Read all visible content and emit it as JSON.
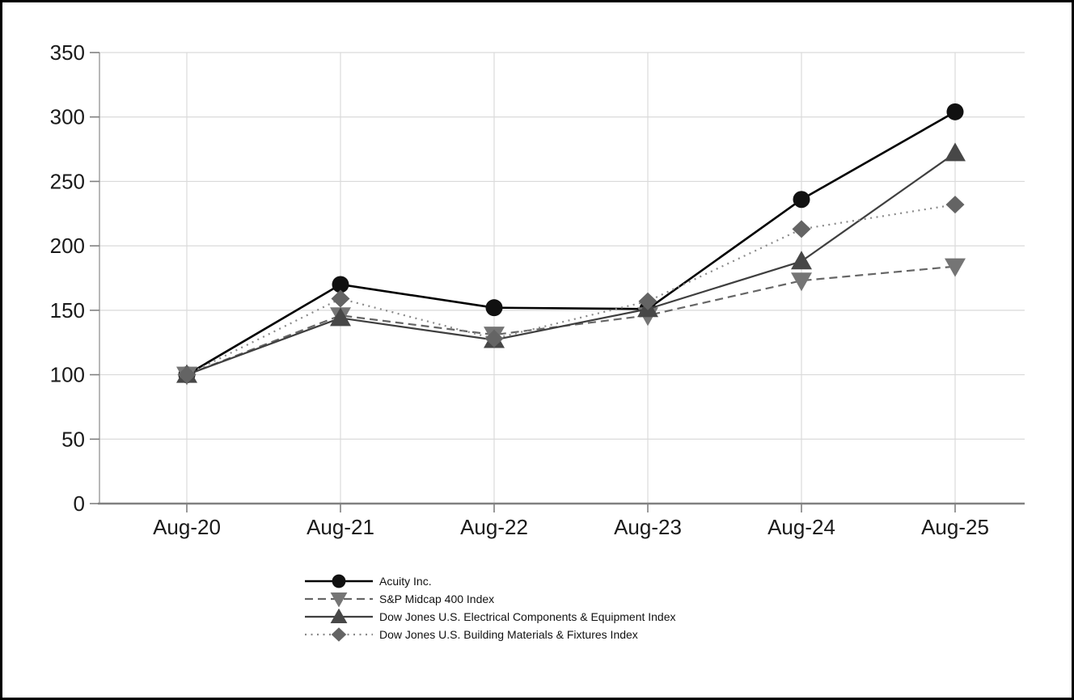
{
  "chart_data": {
    "type": "line",
    "title": "",
    "x_categories": [
      "Aug-20",
      "Aug-21",
      "Aug-22",
      "Aug-23",
      "Aug-24",
      "Aug-25"
    ],
    "y_axis": {
      "min": 0,
      "max": 350,
      "tick_step": 50,
      "tick_labels": [
        "0",
        "50",
        "100",
        "150",
        "200",
        "250",
        "300",
        "350"
      ]
    },
    "grid": {
      "horizontal": true,
      "vertical": true
    },
    "legend_position": "bottom-left",
    "series": [
      {
        "name": "Acuity Inc.",
        "values": [
          100,
          170,
          152,
          151,
          236,
          304
        ],
        "line_style": "solid",
        "line_color": "#000000",
        "line_width": 2.6,
        "marker": "circle",
        "marker_color": "#111111"
      },
      {
        "name": "S&P Midcap 400 Index",
        "values": [
          100,
          146,
          131,
          146,
          173,
          184
        ],
        "line_style": "dashed",
        "line_color": "#666666",
        "line_width": 2.2,
        "marker": "triangle-down",
        "marker_color": "#757575"
      },
      {
        "name": "Dow Jones U.S. Electrical Components & Equipment Index",
        "values": [
          100,
          144,
          127,
          151,
          188,
          272
        ],
        "line_style": "solid",
        "line_color": "#3f3f3f",
        "line_width": 2.2,
        "marker": "triangle-up",
        "marker_color": "#474747"
      },
      {
        "name": "Dow Jones U.S. Building Materials & Fixtures Index",
        "values": [
          100,
          159,
          128,
          157,
          213,
          232
        ],
        "line_style": "dotted",
        "line_color": "#8a8a8a",
        "line_width": 2.2,
        "marker": "diamond",
        "marker_color": "#646464"
      }
    ]
  },
  "colors": {
    "background": "#ffffff",
    "frame_border": "#000000",
    "grid_line": "#dadada",
    "x_axis_line": "#808080",
    "y_axis_line": "#a6a6a6",
    "tick_mark": "#808080",
    "axis_label": "#1a1a1a"
  }
}
